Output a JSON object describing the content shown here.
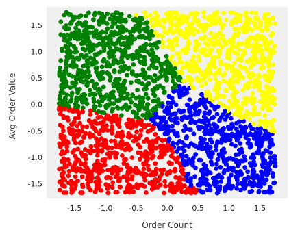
{
  "chart_data": {
    "type": "scatter",
    "xlabel": "Order Count",
    "ylabel": "Avg Order Value",
    "xlim": [
      -1.95,
      1.95
    ],
    "ylim": [
      -1.78,
      1.85
    ],
    "xticks": [
      -1.5,
      -1.0,
      -0.5,
      0.0,
      0.5,
      1.0,
      1.5
    ],
    "xtick_labels": [
      "-1.5",
      "-1.0",
      "-0.5",
      "0.0",
      "0.5",
      "1.0",
      "1.5"
    ],
    "yticks": [
      -1.5,
      -1.0,
      -0.5,
      0.0,
      0.5,
      1.0,
      1.5
    ],
    "ytick_labels": [
      "-1.5",
      "-1.0",
      "-0.5",
      "0.0",
      "0.5",
      "1.0",
      "1.5"
    ],
    "grid": false,
    "background": "#f0f0f0",
    "data_range": {
      "x": [
        -1.75,
        1.75
      ],
      "y": [
        -1.68,
        1.75
      ]
    },
    "series": [
      {
        "color": "#008000",
        "boundary": [
          [
            -1.75,
            1.75
          ],
          [
            -0.6,
            1.75
          ],
          [
            -0.35,
            1.6
          ],
          [
            0.25,
            0.45
          ],
          [
            -0.3,
            -0.3
          ],
          [
            -1.75,
            -0.02
          ]
        ]
      },
      {
        "color": "#ffff00",
        "boundary": [
          [
            -0.6,
            1.75
          ],
          [
            1.75,
            1.75
          ],
          [
            1.75,
            -0.55
          ],
          [
            1.05,
            -0.2
          ],
          [
            0.25,
            0.45
          ],
          [
            -0.35,
            1.6
          ]
        ]
      },
      {
        "color": "#0000ff",
        "boundary": [
          [
            0.25,
            0.45
          ],
          [
            1.05,
            -0.2
          ],
          [
            1.75,
            -0.55
          ],
          [
            1.75,
            -1.7
          ],
          [
            0.6,
            -1.7
          ],
          [
            0.3,
            -1.5
          ],
          [
            0.2,
            -0.95
          ],
          [
            -0.3,
            -0.3
          ]
        ]
      },
      {
        "color": "#ff0000",
        "boundary": [
          [
            -1.75,
            -0.02
          ],
          [
            -0.3,
            -0.3
          ],
          [
            0.2,
            -0.95
          ],
          [
            0.3,
            -1.5
          ],
          [
            0.6,
            -1.7
          ],
          [
            -1.75,
            -1.68
          ]
        ]
      }
    ]
  }
}
